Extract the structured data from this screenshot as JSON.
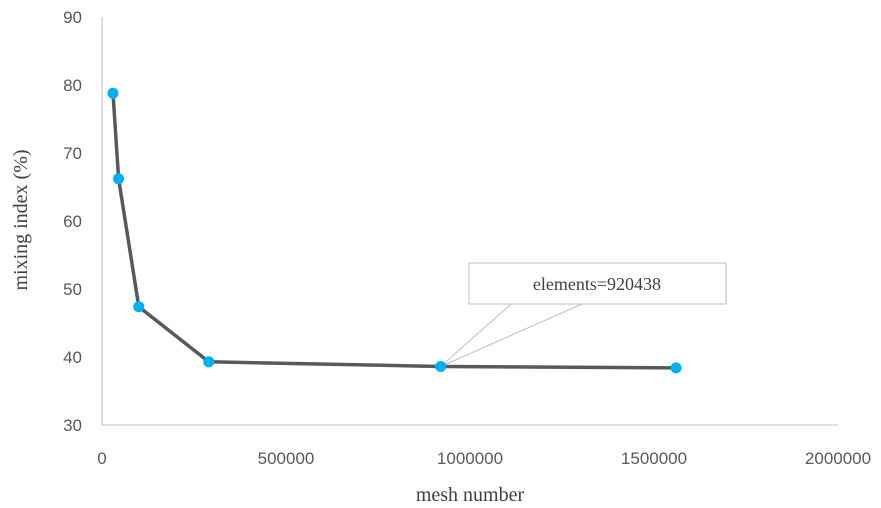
{
  "chart_data": {
    "type": "line",
    "title": "",
    "xlabel": "mesh number",
    "ylabel": "mixing index (%)",
    "xlim": [
      0,
      2000000
    ],
    "ylim": [
      30,
      90
    ],
    "x_ticks": [
      "0",
      "500000",
      "1000000",
      "1500000",
      "2000000"
    ],
    "y_ticks": [
      "30",
      "40",
      "50",
      "60",
      "70",
      "80",
      "90"
    ],
    "grid": false,
    "legend": "none",
    "series": [
      {
        "x": [
          30000,
          45000,
          100000,
          290000,
          920438,
          1560000
        ],
        "y": [
          78.8,
          66.2,
          47.4,
          39.3,
          38.6,
          38.4
        ],
        "line_color": "#595959",
        "marker_color": "#00B0F0"
      }
    ],
    "annotations": [
      {
        "text": "elements=920438",
        "x": 920438,
        "y": 38.6
      }
    ]
  }
}
